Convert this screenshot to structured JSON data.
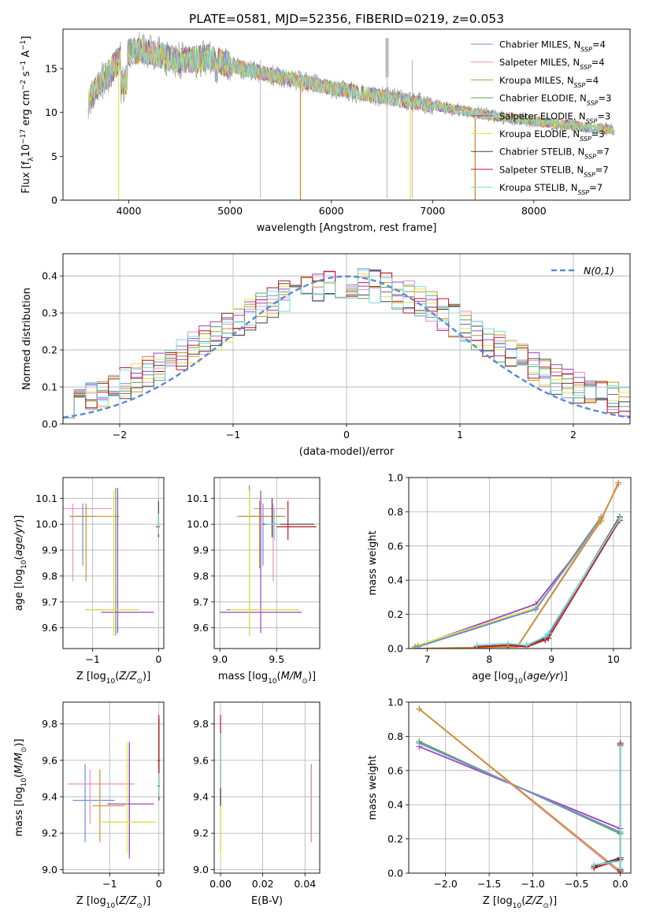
{
  "figure_title": "PLATE=0581, MJD=52356, FIBERID=0219, z=0.053",
  "series_names": [
    "Chabrier MILES, N_SSP=4",
    "Salpeter MILES, N_SSP=4",
    "Kroupa MILES, N_SSP=4",
    "Chabrier ELODIE, N_SSP=3",
    "Salpeter ELODIE, N_SSP=3",
    "Kroupa ELODIE, N_SSP=3",
    "Chabrier STELIB, N_SSP=7",
    "Salpeter STELIB, N_SSP=7",
    "Kroupa STELIB, N_SSP=7"
  ],
  "series_colors": [
    "#6b8fd6",
    "#e88fc8",
    "#c8922a",
    "#5aa55a",
    "#a040c0",
    "#e3e34a",
    "#444444",
    "#c0141e",
    "#7adcdc"
  ],
  "chart_data": [
    {
      "id": "spectrum",
      "type": "line",
      "xlabel": "wavelength [Angstrom, rest frame]",
      "ylabel": "Flux [f_λ10^-17 erg cm^-2 s^-1 A^-1]",
      "xlim": [
        3350,
        8950
      ],
      "ylim": [
        0,
        19.5
      ],
      "xticks": [
        4000,
        5000,
        6000,
        7000,
        8000
      ],
      "yticks": [
        0,
        5,
        10,
        15
      ],
      "grid": false,
      "legend": "top-right",
      "legend_labels": [
        "Chabrier MILES, N",
        "Salpeter MILES, N",
        "Kroupa MILES, N",
        "Chabrier ELODIE, N",
        "Salpeter ELODIE, N",
        "Kroupa ELODIE, N",
        "Chabrier STELIB, N",
        "Salpeter STELIB, N",
        "Kroupa STELIB, N"
      ],
      "legend_counts": [
        "=4",
        "=4",
        "=4",
        "=3",
        "=3",
        "=3",
        "=7",
        "=7",
        "=7"
      ],
      "continuum_x": [
        3600,
        3700,
        3800,
        3900,
        4000,
        4100,
        4200,
        4300,
        4400,
        4500,
        4600,
        4700,
        4800,
        4900,
        5000,
        5200,
        5400,
        5600,
        5800,
        6000,
        6200,
        6400,
        6600,
        6800,
        7000,
        7200,
        7400,
        7600,
        7800,
        8000,
        8200,
        8400,
        8600,
        8800
      ],
      "continuum_y": [
        11.5,
        13.0,
        14.5,
        16.0,
        16.8,
        17.0,
        16.8,
        16.5,
        16.2,
        16.0,
        16.0,
        16.1,
        16.2,
        15.8,
        15.4,
        14.8,
        14.3,
        13.8,
        13.3,
        12.8,
        12.4,
        12.0,
        11.6,
        11.2,
        10.8,
        10.4,
        10.0,
        9.6,
        9.3,
        9.0,
        8.7,
        8.5,
        8.2,
        8.0
      ],
      "drops": [
        {
          "x": 3900,
          "y": 0,
          "series": "Kroupa ELODIE"
        },
        {
          "x": 5695,
          "y": 0,
          "series": "Salpeter MILES"
        },
        {
          "x": 6780,
          "y": 0,
          "series": "Kroupa ELODIE"
        },
        {
          "x": 7420,
          "y": 0,
          "series": "Salpeter MILES"
        }
      ]
    },
    {
      "id": "residuals",
      "type": "histogram",
      "xlabel": "(data-model)/error",
      "ylabel": "Normed distribution",
      "xlim": [
        -2.5,
        2.5
      ],
      "ylim": [
        0,
        0.46
      ],
      "xticks": [
        -2,
        -1,
        0,
        1,
        2
      ],
      "yticks": [
        0.0,
        0.1,
        0.2,
        0.3,
        0.4
      ],
      "grid": true,
      "legend": "top-right",
      "reference_label": "N(0,1)",
      "reference": {
        "mean": 0,
        "sigma": 1
      },
      "bin_edges_range": [
        -2.5,
        2.5
      ],
      "n_bins": 50,
      "shape_note": ""
    },
    {
      "id": "age_vs_Z",
      "type": "errorbar",
      "xlabel": "Z [log10(Z/Z⊙)]",
      "ylabel": "age  [log10(age/yr)]",
      "xlim": [
        -1.45,
        0.08
      ],
      "ylim": [
        9.52,
        10.18
      ],
      "xticks": [
        -1,
        0
      ],
      "yticks": [
        9.6,
        9.7,
        9.8,
        9.9,
        10.0,
        10.1
      ],
      "grid": true,
      "points": [
        {
          "x": -1.15,
          "y": 10.03,
          "xerr": [
            0.2,
            0.2
          ],
          "yerr": [
            0.19,
            0.05
          ],
          "series": 0
        },
        {
          "x": -1.3,
          "y": 10.06,
          "xerr": [
            0.35,
            0.6
          ],
          "yerr": [
            0.28,
            0.02
          ],
          "series": 1
        },
        {
          "x": -1.1,
          "y": 10.03,
          "xerr": [
            0.25,
            0.5
          ],
          "yerr": [
            0.25,
            0.05
          ],
          "series": 2
        },
        {
          "x": -0.65,
          "y": 9.67,
          "xerr": [
            0.45,
            0.35
          ],
          "yerr": [
            0.1,
            0.47
          ],
          "series": 3
        },
        {
          "x": -0.62,
          "y": 9.66,
          "xerr": [
            0.25,
            0.55
          ],
          "yerr": [
            0.08,
            0.48
          ],
          "series": 4
        },
        {
          "x": -0.68,
          "y": 9.67,
          "xerr": [
            0.4,
            0.4
          ],
          "yerr": [
            0.1,
            0.46
          ],
          "series": 5
        },
        {
          "x": 0.0,
          "y": 10.0,
          "xerr": [
            0.01,
            0.02
          ],
          "yerr": [
            0.05,
            0.09
          ],
          "series": 6
        },
        {
          "x": 0.0,
          "y": 9.99,
          "xerr": [
            0.04,
            0.02
          ],
          "yerr": [
            0.04,
            0.04
          ],
          "series": 7
        },
        {
          "x": 0.0,
          "y": 10.0,
          "xerr": [
            0.03,
            0.03
          ],
          "yerr": [
            0.04,
            0.04
          ],
          "series": 8
        }
      ]
    },
    {
      "id": "age_vs_mass",
      "type": "errorbar",
      "xlabel": "mass [log10(M/M⊙)]",
      "ylabel": "",
      "xlim": [
        8.95,
        9.88
      ],
      "ylim": [
        9.52,
        10.18
      ],
      "xticks": [
        9.0,
        9.5
      ],
      "yticks": [
        9.6,
        9.7,
        9.8,
        9.9,
        10.0,
        10.1
      ],
      "grid": true,
      "points": [
        {
          "x": 9.38,
          "y": 10.03,
          "xerr": [
            0.23,
            0.2
          ],
          "yerr": [
            0.19,
            0.05
          ],
          "series": 0
        },
        {
          "x": 9.47,
          "y": 10.06,
          "xerr": [
            0.17,
            0.11
          ],
          "yerr": [
            0.28,
            0.02
          ],
          "series": 1
        },
        {
          "x": 9.35,
          "y": 10.03,
          "xerr": [
            0.17,
            0.2
          ],
          "yerr": [
            0.2,
            0.06
          ],
          "series": 2
        },
        {
          "x": 9.26,
          "y": 9.67,
          "xerr": [
            0.2,
            0.44
          ],
          "yerr": [
            0.1,
            0.48
          ],
          "series": 3
        },
        {
          "x": 9.36,
          "y": 9.66,
          "xerr": [
            0.36,
            0.36
          ],
          "yerr": [
            0.08,
            0.47
          ],
          "series": 4
        },
        {
          "x": 9.26,
          "y": 9.67,
          "xerr": [
            0.17,
            0.44
          ],
          "yerr": [
            0.1,
            0.46
          ],
          "series": 5
        },
        {
          "x": 9.46,
          "y": 10.0,
          "xerr": [
            0.08,
            0.37
          ],
          "yerr": [
            0.05,
            0.1
          ],
          "series": 6
        },
        {
          "x": 9.6,
          "y": 9.99,
          "xerr": [
            0.1,
            0.25
          ],
          "yerr": [
            0.05,
            0.1
          ],
          "series": 7
        },
        {
          "x": 9.48,
          "y": 10.0,
          "xerr": [
            0.08,
            0.05
          ],
          "yerr": [
            0.06,
            0.06
          ],
          "series": 8
        }
      ]
    },
    {
      "id": "weight_vs_age",
      "type": "line",
      "xlabel": "age  [log10(age/yr)]",
      "ylabel": "mass weight",
      "xlim": [
        6.7,
        10.28
      ],
      "ylim": [
        0,
        1.0
      ],
      "xticks": [
        7,
        8,
        9,
        10
      ],
      "yticks": [
        0.0,
        0.2,
        0.4,
        0.6,
        0.8,
        1.0
      ],
      "grid": true,
      "series": [
        {
          "x": [
            6.8,
            8.75,
            9.8
          ],
          "y": [
            0.01,
            0.26,
            0.74
          ],
          "series": 4
        },
        {
          "x": [
            6.8,
            8.75,
            9.8
          ],
          "y": [
            0.01,
            0.23,
            0.77
          ],
          "series": 3
        },
        {
          "x": [
            6.85,
            8.75,
            9.8
          ],
          "y": [
            0.02,
            0.24,
            0.74
          ],
          "series": 5
        },
        {
          "x": [
            6.85,
            8.75,
            9.8
          ],
          "y": [
            0.01,
            0.23,
            0.76
          ],
          "series": 0
        },
        {
          "x": [
            6.8,
            8.45,
            9.8,
            10.08
          ],
          "y": [
            0.0,
            0.01,
            0.76,
            0.96
          ],
          "series": 1
        },
        {
          "x": [
            6.8,
            8.45,
            9.8,
            10.08
          ],
          "y": [
            0.0,
            0.01,
            0.75,
            0.97
          ],
          "series": 2
        },
        {
          "x": [
            7.8,
            8.3,
            8.6,
            8.9,
            8.95,
            10.1
          ],
          "y": [
            0.01,
            0.02,
            0.02,
            0.06,
            0.08,
            0.77
          ],
          "series": 6
        },
        {
          "x": [
            7.8,
            8.3,
            8.6,
            8.9,
            8.95,
            10.1
          ],
          "y": [
            0.01,
            0.02,
            0.01,
            0.05,
            0.06,
            0.75
          ],
          "series": 7
        },
        {
          "x": [
            7.8,
            8.3,
            8.6,
            8.9,
            8.95,
            10.1
          ],
          "y": [
            0.02,
            0.03,
            0.02,
            0.07,
            0.09,
            0.76
          ],
          "series": 8
        }
      ]
    },
    {
      "id": "mass_vs_Z",
      "type": "errorbar",
      "xlabel": "Z [log10(Z/Z⊙)]",
      "ylabel": "mass [log10(M/M⊙)]",
      "xlim": [
        -1.95,
        0.1
      ],
      "ylim": [
        8.98,
        9.92
      ],
      "xticks": [
        -1,
        0
      ],
      "yticks": [
        9.0,
        9.2,
        9.4,
        9.6,
        9.8
      ],
      "grid": true,
      "points": [
        {
          "x": -1.5,
          "y": 9.38,
          "xerr": [
            0.25,
            0.6
          ],
          "yerr": [
            0.23,
            0.2
          ],
          "series": 0
        },
        {
          "x": -1.4,
          "y": 9.47,
          "xerr": [
            0.45,
            0.9
          ],
          "yerr": [
            0.22,
            0.08
          ],
          "series": 1
        },
        {
          "x": -1.2,
          "y": 9.35,
          "xerr": [
            0.15,
            0.5
          ],
          "yerr": [
            0.2,
            0.2
          ],
          "series": 2
        },
        {
          "x": -0.6,
          "y": 9.26,
          "xerr": [
            0.55,
            0.45
          ],
          "yerr": [
            0.17,
            0.44
          ],
          "series": 3
        },
        {
          "x": -0.6,
          "y": 9.36,
          "xerr": [
            0.45,
            0.5
          ],
          "yerr": [
            0.3,
            0.34
          ],
          "series": 4
        },
        {
          "x": -0.65,
          "y": 9.26,
          "xerr": [
            0.5,
            0.6
          ],
          "yerr": [
            0.17,
            0.44
          ],
          "series": 5
        },
        {
          "x": 0.0,
          "y": 9.46,
          "xerr": [
            0.03,
            0.02
          ],
          "yerr": [
            0.08,
            0.37
          ],
          "series": 6
        },
        {
          "x": 0.0,
          "y": 9.6,
          "xerr": [
            0.03,
            0.02
          ],
          "yerr": [
            0.1,
            0.25
          ],
          "series": 7
        },
        {
          "x": 0.0,
          "y": 9.48,
          "xerr": [
            0.03,
            0.03
          ],
          "yerr": [
            0.08,
            0.05
          ],
          "series": 8
        }
      ]
    },
    {
      "id": "mass_vs_ebv",
      "type": "errorbar",
      "xlabel": "E(B-V)",
      "ylabel": "",
      "xlim": [
        -0.003,
        0.047
      ],
      "ylim": [
        8.98,
        9.92
      ],
      "xticks": [
        0.0,
        0.02,
        0.04
      ],
      "yticks": [
        9.0,
        9.2,
        9.4,
        9.6,
        9.8
      ],
      "grid": true,
      "points": [
        {
          "x": 0.0,
          "y": 9.46,
          "xerr": [
            0,
            0
          ],
          "yerr": [
            0.36,
            0.3
          ],
          "series": 4
        },
        {
          "x": 0.0,
          "y": 9.36,
          "xerr": [
            0,
            0
          ],
          "yerr": [
            0.3,
            0.38
          ],
          "series": 5
        },
        {
          "x": 0.0,
          "y": 9.6,
          "xerr": [
            0,
            0
          ],
          "yerr": [
            0.15,
            0.25
          ],
          "series": 7
        },
        {
          "x": 0.0,
          "y": 9.5,
          "xerr": [
            0,
            0
          ],
          "yerr": [
            0.08,
            0.25
          ],
          "series": 8
        },
        {
          "x": 0.0,
          "y": 9.4,
          "xerr": [
            0,
            0
          ],
          "yerr": [
            0.05,
            0.05
          ],
          "series": 6
        },
        {
          "x": 0.043,
          "y": 9.38,
          "xerr": [
            0,
            0
          ],
          "yerr": [
            0.23,
            0.2
          ],
          "series": 0
        },
        {
          "x": 0.043,
          "y": 9.4,
          "xerr": [
            0,
            0
          ],
          "yerr": [
            0.22,
            0.15
          ],
          "series": 2
        },
        {
          "x": 0.043,
          "y": 9.35,
          "xerr": [
            0,
            0
          ],
          "yerr": [
            0.2,
            0.22
          ],
          "series": 1
        }
      ]
    },
    {
      "id": "weight_vs_Z",
      "type": "line",
      "xlabel": "Z [log10(Z/Z⊙)]",
      "ylabel": "mass weight",
      "xlim": [
        -2.42,
        0.12
      ],
      "ylim": [
        0,
        1.0
      ],
      "xticks": [
        -2.0,
        -1.5,
        -1.0,
        -0.5,
        0.0
      ],
      "yticks": [
        0.0,
        0.2,
        0.4,
        0.6,
        0.8,
        1.0
      ],
      "grid": true,
      "series": [
        {
          "x": [
            -2.3,
            0.0
          ],
          "y": [
            0.74,
            0.26
          ],
          "series": 4
        },
        {
          "x": [
            -2.3,
            0.0
          ],
          "y": [
            0.77,
            0.23
          ],
          "series": 3
        },
        {
          "x": [
            -2.3,
            0.0
          ],
          "y": [
            0.76,
            0.24
          ],
          "series": 5
        },
        {
          "x": [
            -2.3,
            0.0
          ],
          "y": [
            0.76,
            0.24
          ],
          "series": 0
        },
        {
          "x": [
            -2.3,
            0.0
          ],
          "y": [
            0.96,
            0.0
          ],
          "series": 1
        },
        {
          "x": [
            -2.3,
            0.0
          ],
          "y": [
            0.96,
            0.01
          ],
          "series": 2
        },
        {
          "x": [
            -0.3,
            0.0,
            0.0,
            0.0
          ],
          "y": [
            0.04,
            0.09,
            0.76,
            0.02
          ],
          "series": 6
        },
        {
          "x": [
            -0.3,
            0.0,
            0.0,
            0.0
          ],
          "y": [
            0.03,
            0.08,
            0.75,
            0.01
          ],
          "series": 7
        },
        {
          "x": [
            -0.3,
            0.0,
            0.0,
            0.0
          ],
          "y": [
            0.05,
            0.07,
            0.74,
            0.03
          ],
          "series": 8
        }
      ]
    }
  ]
}
